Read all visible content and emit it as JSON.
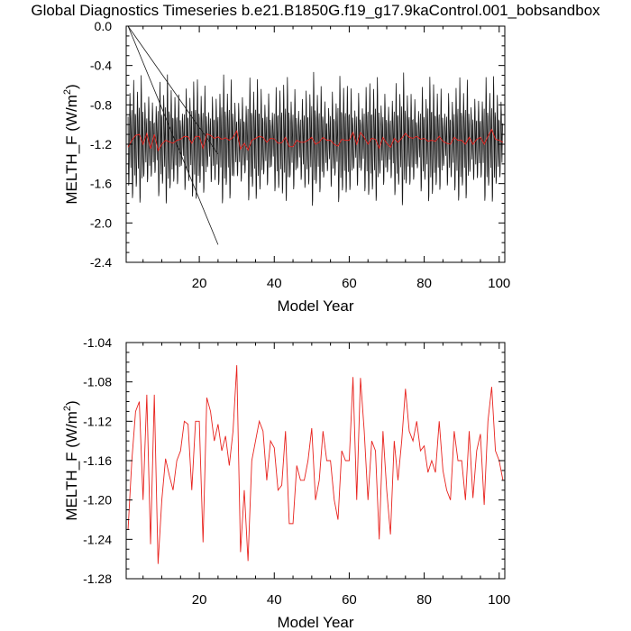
{
  "page": {
    "title": "Global Diagnostics Timeseries b.e21.B1850G.f19_g17.9kaControl.001_bobsandbox"
  },
  "colors": {
    "monthly_line": "#1a1a1a",
    "annual_line": "#e8231e",
    "axes": "#000000"
  },
  "chart_data": [
    {
      "type": "line",
      "name": "monthly-and-annual",
      "xlabel": "Model Year",
      "ylabel_main": "MELTH_F (W/m",
      "ylabel_sup": "2",
      "ylabel_close": ")",
      "xlim": [
        0.5,
        101.5
      ],
      "ylim": [
        -2.4,
        0.0
      ],
      "xticks": [
        20,
        40,
        60,
        80,
        100
      ],
      "xtick_labels": [
        "20",
        "40",
        "60",
        "80",
        "100"
      ],
      "yticks": [
        0.0,
        -0.4,
        -0.8,
        -1.2,
        -1.6,
        -2.0,
        -2.4
      ],
      "ytick_labels": [
        "0.0",
        "-0.4",
        "-0.8",
        "-1.2",
        "-1.6",
        "-2.0",
        "-2.4"
      ],
      "series": [
        {
          "name": "monthly",
          "color": "#1a1a1a",
          "x_start": 1,
          "x_step": 0.0833333,
          "base_values": [
            -0.92,
            -1.38,
            -1.62,
            -1.58,
            -1.3,
            -0.92,
            -0.68,
            -0.82,
            -1.28,
            -1.44,
            -1.12,
            -0.95
          ],
          "wrap_lines": [
            {
              "x": [
                1,
                25
              ],
              "y": [
                0.0,
                -1.3
              ]
            },
            {
              "x": [
                1,
                25
              ],
              "y": [
                0.0,
                -2.22
              ]
            }
          ]
        },
        {
          "name": "annual",
          "color": "#e8231e",
          "x": [
            1,
            2,
            3,
            4,
            5,
            6,
            7,
            8,
            9,
            10,
            11,
            12,
            13,
            14,
            15,
            16,
            17,
            18,
            19,
            20,
            21,
            22,
            23,
            24,
            25,
            26,
            27,
            28,
            29,
            30,
            31,
            32,
            33,
            34,
            35,
            36,
            37,
            38,
            39,
            40,
            41,
            42,
            43,
            44,
            45,
            46,
            47,
            48,
            49,
            50,
            51,
            52,
            53,
            54,
            55,
            56,
            57,
            58,
            59,
            60,
            61,
            62,
            63,
            64,
            65,
            66,
            67,
            68,
            69,
            70,
            71,
            72,
            73,
            74,
            75,
            76,
            77,
            78,
            79,
            80,
            81,
            82,
            83,
            84,
            85,
            86,
            87,
            88,
            89,
            90,
            91,
            92,
            93,
            94,
            95,
            96,
            97,
            98,
            99,
            100,
            101
          ],
          "values": [
            -1.23,
            -1.16,
            -1.11,
            -1.1,
            -1.2,
            -1.09,
            -1.245,
            -1.1,
            -1.265,
            -1.2,
            -1.16,
            -1.175,
            -1.19,
            -1.16,
            -1.15,
            -1.12,
            -1.125,
            -1.19,
            -1.12,
            -1.12,
            -1.24,
            -1.095,
            -1.11,
            -1.14,
            -1.125,
            -1.15,
            -1.135,
            -1.16,
            -1.13,
            -1.065,
            -1.25,
            -1.19,
            -1.26,
            -1.16,
            -1.14,
            -1.12,
            -1.13,
            -1.18,
            -1.14,
            -1.145,
            -1.19,
            -1.185,
            -1.13,
            -1.225,
            -1.225,
            -1.16,
            -1.18,
            -1.18,
            -1.16,
            -1.13,
            -1.2,
            -1.18,
            -1.13,
            -1.16,
            -1.16,
            -1.2,
            -1.22,
            -1.15,
            -1.16,
            -1.16,
            -1.08,
            -1.2,
            -1.08,
            -1.13,
            -1.2,
            -1.14,
            -1.15,
            -1.24,
            -1.13,
            -1.19,
            -1.23,
            -1.14,
            -1.18,
            -1.14,
            -1.09,
            -1.13,
            -1.14,
            -1.12,
            -1.15,
            -1.14,
            -1.17,
            -1.16,
            -1.17,
            -1.12,
            -1.17,
            -1.19,
            -1.2,
            -1.13,
            -1.16,
            -1.16,
            -1.2,
            -1.13,
            -1.2,
            -1.15,
            -1.13,
            -1.2,
            -1.12,
            -1.05,
            -1.15,
            -1.16,
            -1.18
          ]
        }
      ]
    },
    {
      "type": "line",
      "name": "annual-mean",
      "xlabel": "Model Year",
      "ylabel_main": "MELTH_F (W/m",
      "ylabel_sup": "2",
      "ylabel_close": ")",
      "xlim": [
        0.5,
        101.5
      ],
      "ylim": [
        -1.28,
        -1.04
      ],
      "xticks": [
        20,
        40,
        60,
        80,
        100
      ],
      "xtick_labels": [
        "20",
        "40",
        "60",
        "80",
        "100"
      ],
      "yticks": [
        -1.04,
        -1.08,
        -1.12,
        -1.16,
        -1.2,
        -1.24,
        -1.28
      ],
      "ytick_labels": [
        "-1.04",
        "-1.08",
        "-1.12",
        "-1.16",
        "-1.20",
        "-1.24",
        "-1.28"
      ],
      "series": [
        {
          "name": "annual",
          "color": "#e8231e",
          "x": [
            1,
            2,
            3,
            4,
            5,
            6,
            7,
            8,
            9,
            10,
            11,
            12,
            13,
            14,
            15,
            16,
            17,
            18,
            19,
            20,
            21,
            22,
            23,
            24,
            25,
            26,
            27,
            28,
            29,
            30,
            31,
            32,
            33,
            34,
            35,
            36,
            37,
            38,
            39,
            40,
            41,
            42,
            43,
            44,
            45,
            46,
            47,
            48,
            49,
            50,
            51,
            52,
            53,
            54,
            55,
            56,
            57,
            58,
            59,
            60,
            61,
            62,
            63,
            64,
            65,
            66,
            67,
            68,
            69,
            70,
            71,
            72,
            73,
            74,
            75,
            76,
            77,
            78,
            79,
            80,
            81,
            82,
            83,
            84,
            85,
            86,
            87,
            88,
            89,
            90,
            91,
            92,
            93,
            94,
            95,
            96,
            97,
            98,
            99,
            100,
            101
          ],
          "values": [
            -1.23,
            -1.16,
            -1.11,
            -1.1,
            -1.2,
            -1.093,
            -1.245,
            -1.093,
            -1.265,
            -1.2,
            -1.158,
            -1.175,
            -1.19,
            -1.16,
            -1.15,
            -1.12,
            -1.123,
            -1.19,
            -1.12,
            -1.12,
            -1.243,
            -1.096,
            -1.11,
            -1.14,
            -1.123,
            -1.15,
            -1.135,
            -1.165,
            -1.13,
            -1.063,
            -1.253,
            -1.19,
            -1.262,
            -1.16,
            -1.14,
            -1.12,
            -1.13,
            -1.18,
            -1.14,
            -1.147,
            -1.19,
            -1.185,
            -1.13,
            -1.224,
            -1.224,
            -1.165,
            -1.18,
            -1.18,
            -1.16,
            -1.127,
            -1.2,
            -1.18,
            -1.13,
            -1.16,
            -1.16,
            -1.2,
            -1.22,
            -1.15,
            -1.16,
            -1.16,
            -1.075,
            -1.2,
            -1.076,
            -1.13,
            -1.2,
            -1.14,
            -1.15,
            -1.24,
            -1.13,
            -1.19,
            -1.235,
            -1.14,
            -1.18,
            -1.14,
            -1.087,
            -1.13,
            -1.14,
            -1.12,
            -1.15,
            -1.145,
            -1.172,
            -1.16,
            -1.172,
            -1.12,
            -1.17,
            -1.19,
            -1.2,
            -1.13,
            -1.16,
            -1.16,
            -1.2,
            -1.13,
            -1.198,
            -1.15,
            -1.133,
            -1.205,
            -1.12,
            -1.085,
            -1.15,
            -1.16,
            -1.18
          ]
        }
      ]
    }
  ]
}
